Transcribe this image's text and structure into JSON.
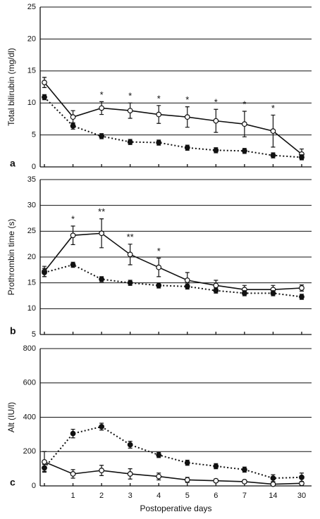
{
  "chart_data": [
    {
      "type": "line",
      "panel": "a",
      "y_label": "Total bilirubin (mg/dl)",
      "ylim": [
        0,
        25
      ],
      "yticks": [
        0,
        5,
        10,
        15,
        20,
        25
      ],
      "grid": true,
      "series": [
        {
          "color": "#111111",
          "marker": "open",
          "dashed": false,
          "values": [
            13.2,
            7.8,
            9.2,
            8.8,
            8.2,
            7.8,
            7.2,
            6.7,
            5.6,
            2.0
          ],
          "errors": [
            0.8,
            1.0,
            1.0,
            1.2,
            1.4,
            1.6,
            1.8,
            2.0,
            2.5,
            0.8
          ]
        },
        {
          "color": "#111111",
          "marker": "filled",
          "dashed": true,
          "values": [
            10.9,
            6.4,
            4.8,
            3.9,
            3.8,
            3.0,
            2.6,
            2.5,
            1.8,
            1.5
          ],
          "errors": [
            0.4,
            0.5,
            0.4,
            0.4,
            0.4,
            0.4,
            0.4,
            0.4,
            0.4,
            0.4
          ]
        }
      ],
      "significance": [
        null,
        null,
        "*",
        "*",
        "*",
        "*",
        "*",
        "*",
        "*",
        null
      ]
    },
    {
      "type": "line",
      "panel": "b",
      "y_label": "Prothrombin time (s)",
      "ylim": [
        5,
        35
      ],
      "yticks": [
        5,
        10,
        15,
        20,
        25,
        30,
        35
      ],
      "grid": true,
      "series": [
        {
          "color": "#111111",
          "marker": "open",
          "dashed": false,
          "values": [
            17.2,
            24.2,
            24.6,
            20.5,
            18.0,
            15.5,
            14.5,
            13.7,
            13.7,
            14.0
          ],
          "errors": [
            1.0,
            1.8,
            2.8,
            2.0,
            1.8,
            1.5,
            1.0,
            0.8,
            0.8,
            0.6
          ]
        },
        {
          "color": "#111111",
          "marker": "filled",
          "dashed": true,
          "values": [
            17.0,
            18.5,
            15.7,
            15.0,
            14.5,
            14.3,
            13.5,
            13.0,
            13.0,
            12.3
          ],
          "errors": [
            0.8,
            0.5,
            0.5,
            0.5,
            0.5,
            0.5,
            0.5,
            0.5,
            0.5,
            0.5
          ]
        }
      ],
      "significance": [
        null,
        "*",
        "**",
        "**",
        "*",
        null,
        null,
        null,
        null,
        null
      ]
    },
    {
      "type": "line",
      "panel": "c",
      "y_label": "Alt (IU/l)",
      "ylim": [
        0,
        800
      ],
      "yticks": [
        0,
        200,
        400,
        600,
        800
      ],
      "grid": true,
      "x_label": "Postoperative days",
      "categories": [
        null,
        "1",
        "2",
        "3",
        "4",
        "5",
        "6",
        "7",
        "14",
        "30"
      ],
      "series": [
        {
          "color": "#111111",
          "marker": "open",
          "dashed": false,
          "values": [
            140,
            70,
            90,
            70,
            55,
            35,
            30,
            25,
            10,
            15
          ],
          "errors": [
            60,
            25,
            30,
            30,
            20,
            15,
            10,
            10,
            10,
            10
          ]
        },
        {
          "color": "#111111",
          "marker": "filled",
          "dashed": true,
          "values": [
            105,
            305,
            345,
            240,
            180,
            135,
            115,
            95,
            45,
            50
          ],
          "errors": [
            20,
            25,
            20,
            20,
            15,
            15,
            15,
            15,
            20,
            25
          ]
        }
      ]
    }
  ]
}
